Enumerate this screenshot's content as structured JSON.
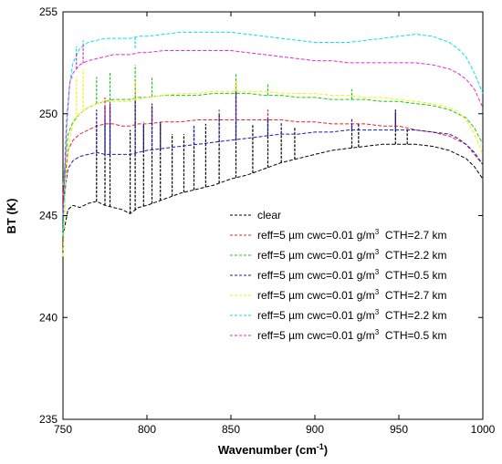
{
  "chart_data": {
    "type": "line",
    "title": "",
    "xlabel": "Wavenumber (cm",
    "xlabel_sup": "-1",
    "xlabel_end": ")",
    "ylabel": "BT (K)",
    "xlim": [
      750,
      1000
    ],
    "ylim": [
      235,
      255
    ],
    "xticks": [
      750,
      800,
      850,
      900,
      950,
      1000
    ],
    "yticks": [
      235,
      240,
      245,
      250,
      255
    ],
    "grid": false,
    "legend_position": "center-right",
    "line_style": "dashed",
    "series": [
      {
        "name": "clear",
        "color": "#000000",
        "x": [
          750,
          753,
          756,
          760,
          765,
          770,
          775,
          780,
          785,
          790,
          795,
          800,
          810,
          820,
          830,
          840,
          850,
          860,
          870,
          880,
          890,
          900,
          910,
          920,
          930,
          940,
          950,
          960,
          970,
          980,
          985,
          990,
          995,
          1000
        ],
        "y": [
          244.0,
          245.3,
          245.5,
          245.4,
          245.6,
          245.7,
          245.5,
          245.4,
          245.3,
          245.1,
          245.4,
          245.5,
          245.8,
          246.1,
          246.3,
          246.5,
          246.8,
          247.0,
          247.3,
          247.6,
          247.8,
          248.0,
          248.2,
          248.3,
          248.4,
          248.5,
          248.5,
          248.5,
          248.4,
          248.2,
          248.0,
          247.8,
          247.4,
          246.8
        ],
        "peaks": [
          {
            "x": 770,
            "y": 249.5
          },
          {
            "x": 775,
            "y": 249.8
          },
          {
            "x": 778,
            "y": 250.2
          },
          {
            "x": 790,
            "y": 249.2
          },
          {
            "x": 793,
            "y": 251.0
          },
          {
            "x": 798,
            "y": 249.5
          },
          {
            "x": 803,
            "y": 250.5
          },
          {
            "x": 808,
            "y": 249.6
          },
          {
            "x": 815,
            "y": 249.0
          },
          {
            "x": 822,
            "y": 249.0
          },
          {
            "x": 828,
            "y": 249.3
          },
          {
            "x": 835,
            "y": 249.5
          },
          {
            "x": 843,
            "y": 250.0
          },
          {
            "x": 853,
            "y": 251.5
          },
          {
            "x": 863,
            "y": 249.5
          },
          {
            "x": 872,
            "y": 249.7
          },
          {
            "x": 880,
            "y": 249.3
          },
          {
            "x": 888,
            "y": 249.3
          },
          {
            "x": 922,
            "y": 249.4
          },
          {
            "x": 926,
            "y": 249.5
          },
          {
            "x": 948,
            "y": 250.2
          },
          {
            "x": 955,
            "y": 249.3
          }
        ]
      },
      {
        "name": "reff=5 µm cwc=0.01 g/m",
        "name_sup": "3",
        "name_end": "  CTH=2.7 km",
        "color": "#e0262b",
        "x": [
          750,
          753,
          756,
          760,
          765,
          770,
          775,
          780,
          785,
          790,
          795,
          800,
          810,
          820,
          830,
          840,
          850,
          860,
          870,
          880,
          890,
          900,
          910,
          920,
          930,
          940,
          950,
          960,
          970,
          980,
          985,
          990,
          995,
          1000
        ],
        "y": [
          246.0,
          248.2,
          248.7,
          249.0,
          249.2,
          249.4,
          249.5,
          249.5,
          249.4,
          249.4,
          249.5,
          249.5,
          249.6,
          249.6,
          249.7,
          249.7,
          249.7,
          249.7,
          249.7,
          249.7,
          249.6,
          249.6,
          249.5,
          249.5,
          249.5,
          249.4,
          249.4,
          249.2,
          249.1,
          248.9,
          248.7,
          248.5,
          248.0,
          247.5
        ],
        "peaks": [
          {
            "x": 775,
            "y": 250.8
          },
          {
            "x": 778,
            "y": 250.6
          },
          {
            "x": 793,
            "y": 251.6
          },
          {
            "x": 803,
            "y": 250.3
          },
          {
            "x": 853,
            "y": 251.6
          },
          {
            "x": 843,
            "y": 250.2
          },
          {
            "x": 872,
            "y": 250.2
          },
          {
            "x": 948,
            "y": 250.0
          }
        ]
      },
      {
        "name": "reff=5 µm cwc=0.01 g/m",
        "name_sup": "3",
        "name_end": "  CTH=2.2 km",
        "color": "#1fc61f",
        "x": [
          750,
          753,
          756,
          760,
          765,
          770,
          775,
          780,
          785,
          790,
          795,
          800,
          810,
          820,
          830,
          840,
          850,
          860,
          870,
          880,
          890,
          900,
          910,
          920,
          930,
          940,
          950,
          960,
          970,
          980,
          985,
          990,
          995,
          1000
        ],
        "y": [
          246.5,
          249.0,
          249.6,
          250.0,
          250.3,
          250.5,
          250.6,
          250.7,
          250.7,
          250.7,
          250.8,
          250.8,
          250.9,
          250.9,
          250.9,
          251.0,
          251.0,
          251.0,
          250.9,
          250.9,
          250.8,
          250.8,
          250.7,
          250.7,
          250.7,
          250.6,
          250.6,
          250.5,
          250.4,
          250.2,
          250.0,
          249.8,
          249.3,
          248.5
        ],
        "peaks": [
          {
            "x": 770,
            "y": 251.8
          },
          {
            "x": 778,
            "y": 252.0
          },
          {
            "x": 793,
            "y": 252.4
          },
          {
            "x": 803,
            "y": 251.8
          },
          {
            "x": 853,
            "y": 252.0
          },
          {
            "x": 872,
            "y": 251.5
          },
          {
            "x": 922,
            "y": 251.2
          }
        ]
      },
      {
        "name": "reff=5 µm cwc=0.01 g/m",
        "name_sup": "3",
        "name_end": "  CTH=0.5 km",
        "color": "#1a1ab0",
        "x": [
          750,
          753,
          756,
          760,
          765,
          770,
          775,
          780,
          785,
          790,
          795,
          800,
          810,
          820,
          830,
          840,
          850,
          860,
          870,
          880,
          890,
          900,
          910,
          920,
          930,
          940,
          950,
          960,
          970,
          980,
          985,
          990,
          995,
          1000
        ],
        "y": [
          245.5,
          247.3,
          247.7,
          247.9,
          248.0,
          248.1,
          248.0,
          248.0,
          248.0,
          248.0,
          248.1,
          248.2,
          248.3,
          248.4,
          248.5,
          248.6,
          248.7,
          248.8,
          248.9,
          249.0,
          249.0,
          249.1,
          249.1,
          249.2,
          249.2,
          249.2,
          249.2,
          249.2,
          249.1,
          249.0,
          248.8,
          248.5,
          248.1,
          247.5
        ],
        "peaks": [
          {
            "x": 770,
            "y": 250.2
          },
          {
            "x": 775,
            "y": 250.4
          },
          {
            "x": 778,
            "y": 250.5
          },
          {
            "x": 793,
            "y": 251.3
          },
          {
            "x": 798,
            "y": 249.6
          },
          {
            "x": 803,
            "y": 250.4
          },
          {
            "x": 808,
            "y": 249.6
          },
          {
            "x": 828,
            "y": 249.4
          },
          {
            "x": 843,
            "y": 250.0
          },
          {
            "x": 853,
            "y": 251.2
          },
          {
            "x": 872,
            "y": 249.8
          },
          {
            "x": 880,
            "y": 249.6
          },
          {
            "x": 922,
            "y": 249.8
          },
          {
            "x": 948,
            "y": 250.1
          }
        ]
      },
      {
        "name": "reff=5 µm cwc=0.01 g/m",
        "name_sup": "3",
        "name_end": "  CTH=2.7 km",
        "color": "#f2f20a",
        "x": [
          750,
          752,
          754,
          756,
          760,
          765,
          770,
          775,
          780,
          785,
          790,
          795,
          800,
          810,
          820,
          830,
          840,
          850,
          860,
          870,
          880,
          890,
          900,
          910,
          920,
          930,
          940,
          950,
          960,
          970,
          980,
          985,
          990,
          995,
          1000
        ],
        "y": [
          243.0,
          247.0,
          248.8,
          249.5,
          250.0,
          250.3,
          250.5,
          250.6,
          250.6,
          250.6,
          250.6,
          250.7,
          250.8,
          250.9,
          251.0,
          251.0,
          251.1,
          251.1,
          251.1,
          251.1,
          251.0,
          251.0,
          251.0,
          250.9,
          250.9,
          250.8,
          250.8,
          250.7,
          250.6,
          250.5,
          250.3,
          250.1,
          249.7,
          249.0,
          248.0
        ],
        "peaks": [
          {
            "x": 758,
            "y": 251.8
          },
          {
            "x": 762,
            "y": 252.2
          },
          {
            "x": 793,
            "y": 251.6
          },
          {
            "x": 853,
            "y": 251.6
          }
        ]
      },
      {
        "name": "reff=5 µm cwc=0.01 g/m",
        "name_sup": "3",
        "name_end": "  CTH=2.2 km",
        "color": "#00e5e5",
        "x": [
          750,
          752,
          754,
          756,
          760,
          765,
          770,
          775,
          780,
          785,
          790,
          795,
          800,
          810,
          820,
          830,
          840,
          850,
          860,
          870,
          880,
          890,
          900,
          910,
          920,
          930,
          940,
          950,
          960,
          970,
          980,
          985,
          990,
          995,
          1000
        ],
        "y": [
          244.0,
          249.0,
          251.5,
          252.5,
          253.2,
          253.5,
          253.6,
          253.7,
          253.7,
          253.7,
          253.7,
          253.8,
          253.8,
          253.9,
          254.0,
          254.0,
          254.0,
          254.0,
          253.9,
          253.8,
          253.7,
          253.6,
          253.5,
          253.5,
          253.5,
          253.6,
          253.7,
          253.8,
          253.9,
          253.8,
          253.5,
          253.2,
          252.8,
          252.0,
          251.0
        ],
        "peaks": [
          {
            "x": 758,
            "y": 253.3
          },
          {
            "x": 762,
            "y": 253.6
          },
          {
            "x": 793,
            "y": 253.2
          }
        ]
      },
      {
        "name": "reff=5 µm cwc=0.01 g/m",
        "name_sup": "3",
        "name_end": "  CTH=0.5 km",
        "color": "#e02cd6",
        "x": [
          750,
          752,
          754,
          756,
          760,
          765,
          770,
          775,
          780,
          785,
          790,
          795,
          800,
          810,
          820,
          830,
          840,
          850,
          860,
          870,
          880,
          890,
          900,
          910,
          920,
          930,
          940,
          950,
          960,
          970,
          980,
          985,
          990,
          995,
          1000
        ],
        "y": [
          245.0,
          249.5,
          251.5,
          252.0,
          252.4,
          252.6,
          252.7,
          252.8,
          252.9,
          252.9,
          252.9,
          253.0,
          253.0,
          253.1,
          253.1,
          253.1,
          253.1,
          253.1,
          253.0,
          252.9,
          252.8,
          252.7,
          252.6,
          252.6,
          252.5,
          252.5,
          252.5,
          252.5,
          252.5,
          252.4,
          252.2,
          252.0,
          251.7,
          251.2,
          250.3
        ],
        "peaks": [
          {
            "x": 758,
            "y": 253.0
          },
          {
            "x": 762,
            "y": 253.4
          }
        ]
      }
    ]
  }
}
